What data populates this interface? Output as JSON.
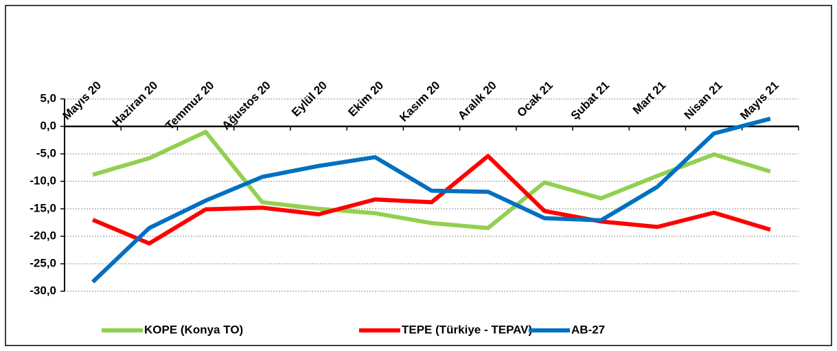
{
  "chart_data": {
    "type": "line",
    "categories": [
      "Mayıs 20",
      "Haziran 20",
      "Temmuz 20",
      "Ağustos 20",
      "Eylül 20",
      "Ekim 20",
      "Kasım 20",
      "Aralık 20",
      "Ocak 21",
      "Şubat 21",
      "Mart 21",
      "Nisan 21",
      "Mayıs 21"
    ],
    "series": [
      {
        "name": "KOPE (Konya TO)",
        "color": "#92d050",
        "values": [
          -8.8,
          -5.8,
          -1.0,
          -13.8,
          -15.0,
          -15.8,
          -17.6,
          -18.5,
          -10.2,
          -13.1,
          -9.0,
          -5.1,
          -8.2
        ]
      },
      {
        "name": "TEPE (Türkiye - TEPAV)",
        "color": "#ff0000",
        "values": [
          -17.0,
          -21.3,
          -15.1,
          -14.8,
          -16.0,
          -13.3,
          -13.8,
          -5.4,
          -15.4,
          -17.3,
          -18.3,
          -15.7,
          -18.8
        ]
      },
      {
        "name": "AB-27",
        "color": "#0070c0",
        "values": [
          -28.3,
          -18.5,
          -13.5,
          -9.2,
          -7.2,
          -5.6,
          -11.7,
          -11.9,
          -16.7,
          -17.1,
          -11.0,
          -1.3,
          1.4
        ]
      }
    ],
    "ylim": [
      -30,
      5
    ],
    "yticks": [
      {
        "value": -30,
        "label": "-30,0"
      },
      {
        "value": -25,
        "label": "-25,0"
      },
      {
        "value": -20,
        "label": "-20,0"
      },
      {
        "value": -15,
        "label": "-15,0"
      },
      {
        "value": -10,
        "label": "-10,0"
      },
      {
        "value": -5,
        "label": "-5,0"
      },
      {
        "value": 0,
        "label": "0,0"
      },
      {
        "value": 5,
        "label": "5,0"
      }
    ],
    "grid": true
  }
}
